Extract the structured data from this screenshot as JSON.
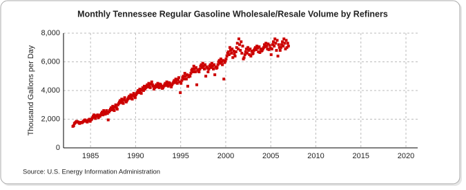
{
  "chart_data": {
    "type": "scatter",
    "title": "Monthly Tennessee Regular Gasoline Wholesale/Resale Volume by Refiners",
    "y_label": "Thousand Gallons per Day",
    "source": "Source: U.S. Energy Information Administration",
    "xlim": [
      1982,
      2021.3
    ],
    "xticks": [
      1985,
      1990,
      1995,
      2000,
      2005,
      2010,
      2015,
      2020
    ],
    "ylim": [
      0,
      8000
    ],
    "yticks": [
      0,
      {
        "value": 2000,
        "label": "2,000"
      },
      {
        "value": 4000,
        "label": "4,000"
      },
      {
        "value": 6000,
        "label": "6,000"
      },
      {
        "value": 8000,
        "label": "8,000"
      }
    ],
    "grid": true,
    "color": "#cc0000",
    "x": [
      1983.04,
      1983.13,
      1983.21,
      1983.29,
      1983.38,
      1983.46,
      1983.54,
      1983.63,
      1983.71,
      1983.79,
      1983.88,
      1983.96,
      1984.04,
      1984.13,
      1984.21,
      1984.29,
      1984.38,
      1984.46,
      1984.54,
      1984.63,
      1984.71,
      1984.79,
      1984.88,
      1984.96,
      1985.04,
      1985.13,
      1985.21,
      1985.29,
      1985.38,
      1985.46,
      1985.54,
      1985.63,
      1985.71,
      1985.79,
      1985.88,
      1985.96,
      1986.04,
      1986.13,
      1986.21,
      1986.29,
      1986.38,
      1986.46,
      1986.54,
      1986.63,
      1986.71,
      1986.79,
      1986.88,
      1986.96,
      1987.04,
      1987.13,
      1987.21,
      1987.29,
      1987.38,
      1987.46,
      1987.54,
      1987.63,
      1987.71,
      1987.79,
      1987.88,
      1987.96,
      1988.04,
      1988.13,
      1988.21,
      1988.29,
      1988.38,
      1988.46,
      1988.54,
      1988.63,
      1988.71,
      1988.79,
      1988.88,
      1988.96,
      1989.04,
      1989.13,
      1989.21,
      1989.29,
      1989.38,
      1989.46,
      1989.54,
      1989.63,
      1989.71,
      1989.79,
      1989.88,
      1989.96,
      1990.04,
      1990.13,
      1990.21,
      1990.29,
      1990.38,
      1990.46,
      1990.54,
      1990.63,
      1990.71,
      1990.79,
      1990.88,
      1990.96,
      1991.04,
      1991.13,
      1991.21,
      1991.29,
      1991.38,
      1991.46,
      1991.54,
      1991.63,
      1991.71,
      1991.79,
      1991.88,
      1991.96,
      1992.04,
      1992.13,
      1992.21,
      1992.29,
      1992.38,
      1992.46,
      1992.54,
      1992.63,
      1992.71,
      1992.79,
      1992.88,
      1992.96,
      1993.04,
      1993.13,
      1993.21,
      1993.29,
      1993.38,
      1993.46,
      1993.54,
      1993.63,
      1993.71,
      1993.79,
      1993.88,
      1993.96,
      1994.04,
      1994.13,
      1994.21,
      1994.29,
      1994.38,
      1994.46,
      1994.54,
      1994.63,
      1994.71,
      1994.79,
      1994.88,
      1994.96,
      1995.04,
      1995.13,
      1995.21,
      1995.29,
      1995.38,
      1995.46,
      1995.54,
      1995.63,
      1995.71,
      1995.79,
      1995.88,
      1995.96,
      1996.04,
      1996.13,
      1996.21,
      1996.29,
      1996.38,
      1996.46,
      1996.54,
      1996.63,
      1996.71,
      1996.79,
      1996.88,
      1996.96,
      1997.04,
      1997.13,
      1997.21,
      1997.29,
      1997.38,
      1997.46,
      1997.54,
      1997.63,
      1997.71,
      1997.79,
      1997.88,
      1997.96,
      1998.04,
      1998.13,
      1998.21,
      1998.29,
      1998.38,
      1998.46,
      1998.54,
      1998.63,
      1998.71,
      1998.79,
      1998.88,
      1998.96,
      1999.04,
      1999.13,
      1999.21,
      1999.29,
      1999.38,
      1999.46,
      1999.54,
      1999.63,
      1999.71,
      1999.79,
      1999.88,
      1999.96,
      2000.04,
      2000.13,
      2000.21,
      2000.29,
      2000.38,
      2000.46,
      2000.54,
      2000.63,
      2000.71,
      2000.79,
      2000.88,
      2000.96,
      2001.04,
      2001.13,
      2001.21,
      2001.29,
      2001.38,
      2001.46,
      2001.54,
      2001.63,
      2001.71,
      2001.79,
      2001.88,
      2001.96,
      2002.04,
      2002.13,
      2002.21,
      2002.29,
      2002.38,
      2002.46,
      2002.54,
      2002.63,
      2002.71,
      2002.79,
      2002.88,
      2002.96,
      2003.04,
      2003.13,
      2003.21,
      2003.29,
      2003.38,
      2003.46,
      2003.54,
      2003.63,
      2003.71,
      2003.79,
      2003.88,
      2003.96,
      2004.04,
      2004.13,
      2004.21,
      2004.29,
      2004.38,
      2004.46,
      2004.54,
      2004.63,
      2004.71,
      2004.79,
      2004.88,
      2004.96,
      2005.04,
      2005.13,
      2005.21,
      2005.29,
      2005.38,
      2005.46,
      2005.54,
      2005.63,
      2005.71,
      2005.79,
      2005.88,
      2005.96,
      2006.04,
      2006.13,
      2006.21,
      2006.29,
      2006.38,
      2006.46,
      2006.54,
      2006.63,
      2006.71,
      2006.79,
      2006.88,
      2006.96
    ],
    "values": [
      1500,
      1550,
      1700,
      1750,
      1800,
      1850,
      1820,
      1800,
      1750,
      1700,
      1760,
      1780,
      1750,
      1800,
      1850,
      1900,
      1950,
      1900,
      1850,
      1800,
      1900,
      1950,
      2000,
      1850,
      1950,
      2000,
      2100,
      2200,
      2300,
      2150,
      2050,
      2250,
      2200,
      2300,
      2100,
      2250,
      2200,
      2300,
      2400,
      2500,
      2300,
      2600,
      2450,
      2350,
      2500,
      2600,
      2400,
      1950,
      2500,
      2600,
      2700,
      2800,
      2650,
      2900,
      2750,
      2600,
      2850,
      3000,
      2800,
      2700,
      3000,
      3100,
      3200,
      3300,
      3150,
      3400,
      3250,
      3100,
      3350,
      3500,
      3300,
      3200,
      3300,
      3400,
      3500,
      3600,
      3450,
      3700,
      3550,
      3400,
      3650,
      3800,
      3600,
      3500,
      3700,
      3800,
      3900,
      4000,
      3850,
      4100,
      3950,
      3800,
      4050,
      4200,
      4000,
      4300,
      4100,
      4200,
      4300,
      4400,
      4250,
      4500,
      4350,
      4200,
      4450,
      4600,
      4400,
      4300,
      4100,
      4200,
      4300,
      4400,
      4250,
      4500,
      4350,
      4200,
      4450,
      4400,
      4300,
      4150,
      4200,
      4300,
      4400,
      4500,
      4350,
      4600,
      4450,
      4300,
      4550,
      4500,
      4400,
      4250,
      4400,
      4500,
      4600,
      4700,
      4550,
      4800,
      4650,
      4500,
      4750,
      4900,
      4600,
      3850,
      4500,
      4700,
      4900,
      5000,
      4800,
      5200,
      5000,
      4800,
      5100,
      4300,
      4950,
      5050,
      5000,
      5200,
      5400,
      5500,
      5300,
      5700,
      5500,
      5300,
      5600,
      4400,
      5450,
      5350,
      5300,
      5500,
      5700,
      5800,
      5600,
      5900,
      5700,
      5500,
      5800,
      5000,
      5650,
      5550,
      5300,
      5500,
      5700,
      5800,
      5600,
      5900,
      5700,
      5500,
      5800,
      5100,
      5650,
      5550,
      5600,
      5800,
      6000,
      6100,
      5900,
      6200,
      6000,
      5800,
      6100,
      4800,
      5950,
      6050,
      6200,
      6400,
      6600,
      6700,
      6500,
      7000,
      6800,
      6600,
      6900,
      6300,
      6750,
      6550,
      6400,
      6700,
      7000,
      7300,
      6900,
      7600,
      7200,
      6800,
      7400,
      6600,
      7100,
      6200,
      6300,
      6500,
      6700,
      6900,
      6600,
      7000,
      6800,
      6500,
      6900,
      6400,
      6750,
      6550,
      6600,
      6800,
      6900,
      7000,
      6850,
      7100,
      6950,
      6700,
      7050,
      6650,
      6900,
      6750,
      6800,
      6900,
      7000,
      7200,
      7050,
      7300,
      7100,
      6900,
      7250,
      6850,
      7150,
      6950,
      6500,
      6900,
      7200,
      7400,
      7100,
      7600,
      7300,
      6800,
      7500,
      6400,
      7200,
      7000,
      6800,
      7000,
      7200,
      7400,
      7100,
      7600,
      7300,
      6900,
      7500,
      7000,
      7300,
      7100
    ]
  }
}
